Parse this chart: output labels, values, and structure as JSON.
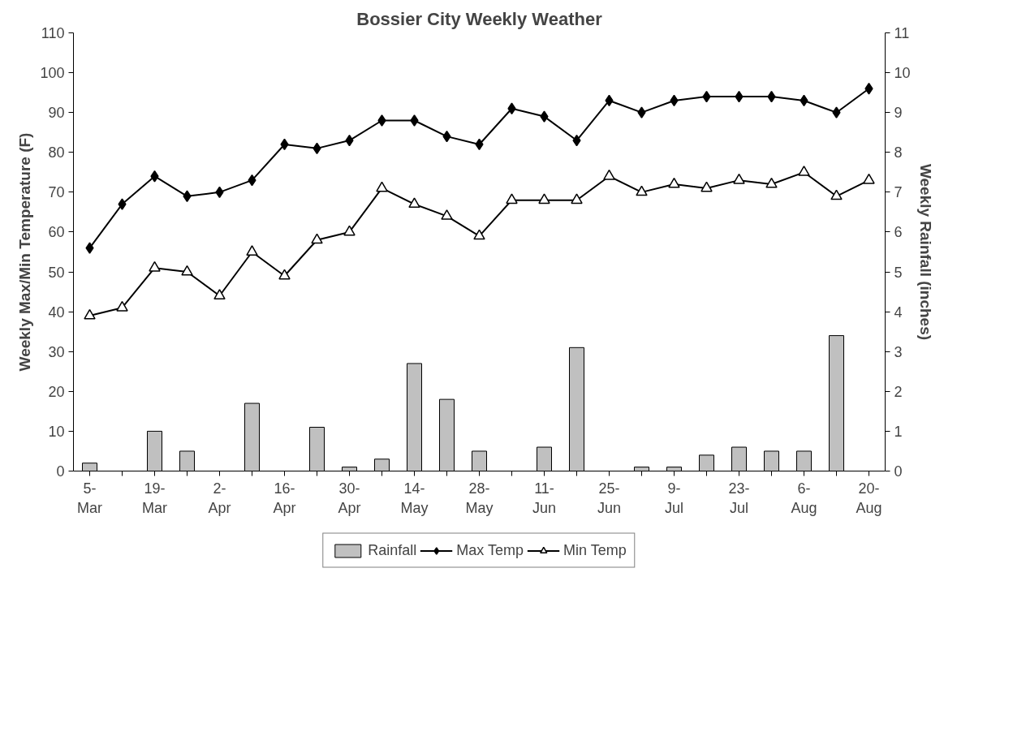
{
  "chart_data": {
    "type": "line",
    "title": "Bossier City Weekly Weather",
    "ylabel": "Weekly Max/Min Temperature (F)",
    "y2label": "Weekly Rainfall (inches)",
    "categories": [
      "5-Mar",
      null,
      "19-Mar",
      null,
      "2-Apr",
      null,
      "16-Apr",
      null,
      "30-Apr",
      null,
      "14-May",
      null,
      "28-May",
      null,
      "11-Jun",
      null,
      "25-Jun",
      null,
      "9-Jul",
      null,
      "23-Jul",
      null,
      "6-Aug",
      null,
      "20-Aug"
    ],
    "ylim": [
      0,
      110
    ],
    "yticks": [
      0,
      10,
      20,
      30,
      40,
      50,
      60,
      70,
      80,
      90,
      100,
      110
    ],
    "y2lim": [
      0,
      11
    ],
    "y2ticks": [
      0,
      1,
      2,
      3,
      4,
      5,
      6,
      7,
      8,
      9,
      10,
      11
    ],
    "grid": false,
    "legend": "bottom",
    "series": [
      {
        "name": "Rainfall",
        "type": "bar",
        "axis": "y2",
        "color": "#c0c0c0",
        "values": [
          0.2,
          0,
          1.0,
          0.5,
          0,
          1.7,
          0,
          1.1,
          0.1,
          0.3,
          2.7,
          1.8,
          0.5,
          0,
          0.6,
          3.1,
          0,
          0.1,
          0.1,
          0.4,
          0.6,
          0.5,
          0.5,
          3.4,
          0
        ]
      },
      {
        "name": "Max Temp",
        "color": "#000000",
        "marker": "diamond",
        "values": [
          56,
          67,
          74,
          69,
          70,
          73,
          82,
          81,
          83,
          88,
          88,
          84,
          82,
          91,
          89,
          83,
          93,
          90,
          93,
          94,
          94,
          94,
          93,
          90,
          96
        ]
      },
      {
        "name": "Min Temp",
        "color": "#000000",
        "marker": "triangle",
        "values": [
          39,
          41,
          51,
          50,
          44,
          55,
          49,
          58,
          60,
          71,
          67,
          64,
          59,
          68,
          68,
          68,
          74,
          70,
          72,
          71,
          73,
          72,
          75,
          69,
          73
        ]
      }
    ]
  }
}
